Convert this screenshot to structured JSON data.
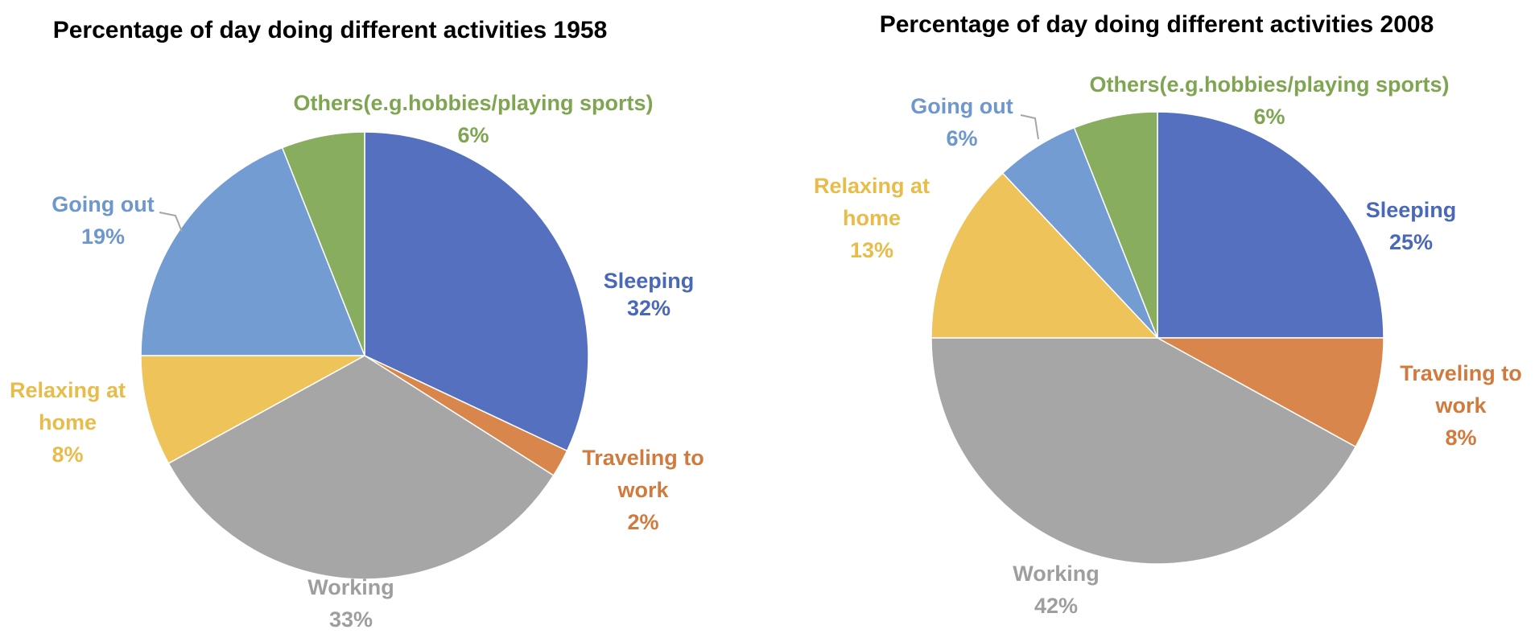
{
  "chart_data": [
    {
      "type": "pie",
      "title": "Percentage of day doing different activities 1958",
      "slices": [
        {
          "label": [
            "Sleeping"
          ],
          "value": 32,
          "value_label": "32%",
          "color": "#5470BE"
        },
        {
          "label": [
            "Traveling to",
            "work"
          ],
          "value": 2,
          "value_label": "2%",
          "color": "#D8864C"
        },
        {
          "label": [
            "Working"
          ],
          "value": 33,
          "value_label": "33%",
          "color": "#A6A6A6"
        },
        {
          "label": [
            "Relaxing at",
            "home"
          ],
          "value": 8,
          "value_label": "8%",
          "color": "#EEC359"
        },
        {
          "label": [
            "Going out"
          ],
          "value": 19,
          "value_label": "19%",
          "color": "#739CD2"
        },
        {
          "label": [
            "Others(e.g.hobbies/playing sports)"
          ],
          "value": 6,
          "value_label": "6%",
          "color": "#88AD5E"
        }
      ]
    },
    {
      "type": "pie",
      "title": "Percentage of day doing different activities 2008",
      "slices": [
        {
          "label": [
            "Sleeping"
          ],
          "value": 25,
          "value_label": "25%",
          "color": "#5470BE"
        },
        {
          "label": [
            "Traveling to",
            "work"
          ],
          "value": 8,
          "value_label": "8%",
          "color": "#D8864C"
        },
        {
          "label": [
            "Working"
          ],
          "value": 42,
          "value_label": "42%",
          "color": "#A6A6A6"
        },
        {
          "label": [
            "Relaxing at",
            "home"
          ],
          "value": 13,
          "value_label": "13%",
          "color": "#EEC359"
        },
        {
          "label": [
            "Going out"
          ],
          "value": 6,
          "value_label": "6%",
          "color": "#739CD2"
        },
        {
          "label": [
            "Others(e.g.hobbies/playing sports)"
          ],
          "value": 6,
          "value_label": "6%",
          "color": "#88AD5E"
        }
      ]
    }
  ],
  "label_colors": {
    "Sleeping": "#4A68B8",
    "Traveling to work": "#D07A3E",
    "Working": "#9E9E9E",
    "Relaxing at home": "#E8BC4A",
    "Going out": "#6E97CE",
    "Others": "#7FA552"
  }
}
